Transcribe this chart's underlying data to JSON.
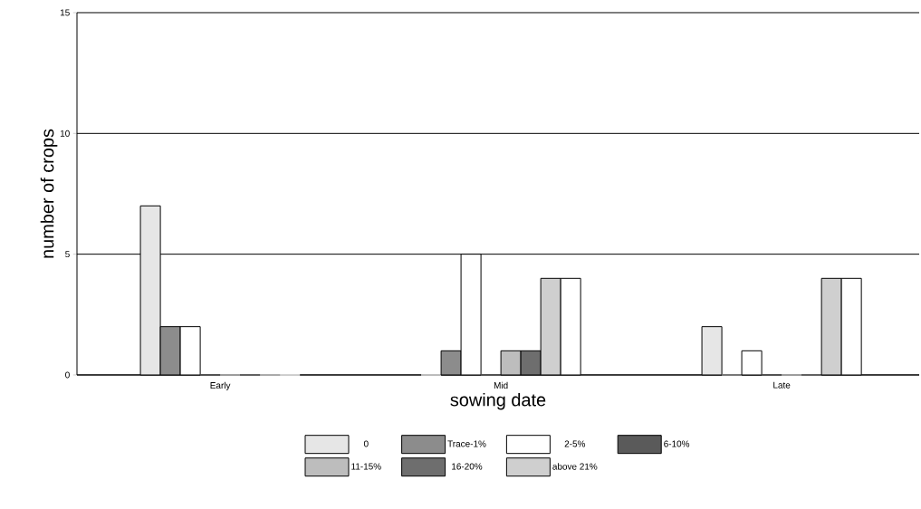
{
  "chart_data": {
    "type": "bar",
    "xlabel": "sowing date",
    "ylabel": "number of crops",
    "categories": [
      "Early",
      "Mid",
      "Late"
    ],
    "series": [
      {
        "name": "0",
        "color": "#e6e6e6",
        "values": [
          7,
          0,
          2
        ]
      },
      {
        "name": "Trace-1%",
        "color": "#8c8c8c",
        "values": [
          2,
          1,
          0
        ]
      },
      {
        "name": "2-5%",
        "color": "#ffffff",
        "values": [
          2,
          5,
          1
        ]
      },
      {
        "name": "6-10%",
        "color": "#5a5a5a",
        "values": [
          0,
          0,
          0
        ]
      },
      {
        "name": "11-15%",
        "color": "#bdbdbd",
        "values": [
          0,
          1,
          0
        ]
      },
      {
        "name": "16-20%",
        "color": "#6e6e6e",
        "values": [
          0,
          1,
          0
        ]
      },
      {
        "name": "above 21%",
        "color": "#cfcfcf",
        "values": [
          0,
          4,
          4
        ]
      },
      {
        "color": "#ffffff",
        "values": [
          0,
          4,
          4
        ]
      }
    ],
    "ylim": [
      0,
      15
    ],
    "yticks": [
      0,
      5,
      10,
      15
    ],
    "grid": "y",
    "legend": "bottom"
  }
}
